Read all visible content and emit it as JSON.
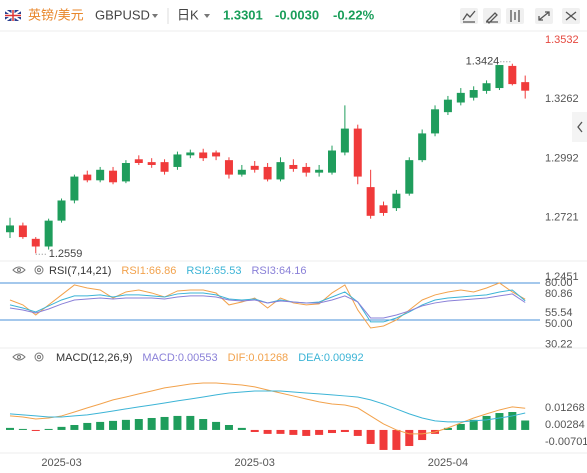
{
  "header": {
    "name": "英镑/美元",
    "symbol": "GBPUSD",
    "period": "日K",
    "price": "1.3301",
    "change": "-0.0030",
    "change_pct": "-0.22%",
    "quote_color": "#1a9e5a"
  },
  "chart_data": [
    {
      "type": "candlestick",
      "categories": [
        null,
        null,
        null,
        null,
        "2025-03",
        null,
        null,
        null,
        null,
        null,
        null,
        null,
        null,
        null,
        null,
        null,
        null,
        null,
        null,
        "2025-03",
        null,
        null,
        null,
        null,
        null,
        null,
        null,
        null,
        null,
        null,
        null,
        null,
        null,
        null,
        "2025-04",
        null,
        null,
        null,
        null,
        null,
        null
      ],
      "open": [
        1.2655,
        1.2686,
        1.2625,
        1.259,
        1.2708,
        1.28,
        1.2918,
        1.2892,
        1.2936,
        1.2887,
        1.2988,
        1.2975,
        1.2975,
        1.2953,
        1.3006,
        1.3019,
        1.3019,
        1.2984,
        1.2918,
        1.2958,
        1.2953,
        1.2896,
        1.2962,
        1.2953,
        1.2927,
        1.2927,
        1.3019,
        1.3128,
        1.2861,
        1.2778,
        1.2765,
        1.2831,
        1.2984,
        1.3106,
        1.3203,
        1.3247,
        1.3269,
        1.33,
        1.3313,
        1.3414,
        1.334
      ],
      "high": [
        1.2721,
        1.2699,
        1.2633,
        1.2717,
        1.2809,
        1.2918,
        1.2936,
        1.2953,
        1.2953,
        1.2984,
        1.3006,
        1.2993,
        1.2988,
        1.3023,
        1.3032,
        1.3036,
        1.3028,
        1.2997,
        1.2962,
        1.298,
        1.2971,
        1.2997,
        1.2988,
        1.2971,
        1.2962,
        1.305,
        1.3234,
        1.3146,
        1.294,
        1.2795,
        1.2848,
        1.2997,
        1.3124,
        1.3234,
        1.3277,
        1.3313,
        1.3321,
        1.3348,
        1.3418,
        1.3424,
        1.337
      ],
      "low": [
        1.2629,
        1.2625,
        1.2559,
        1.2576,
        1.2699,
        1.2787,
        1.2883,
        1.2883,
        1.2874,
        1.2879,
        1.2962,
        1.2949,
        1.2918,
        1.294,
        1.2993,
        1.298,
        1.2984,
        1.29,
        1.2909,
        1.2927,
        1.2887,
        1.2887,
        1.2931,
        1.2909,
        1.2909,
        1.2918,
        1.3006,
        1.2874,
        1.2717,
        1.273,
        1.2752,
        1.2822,
        1.2975,
        1.3093,
        1.319,
        1.3234,
        1.3256,
        1.3287,
        1.3304,
        1.3325,
        1.3265
      ],
      "close": [
        1.2686,
        1.2633,
        1.259,
        1.2708,
        1.28,
        1.2909,
        1.2892,
        1.294,
        1.2883,
        1.2971,
        1.2971,
        1.2962,
        1.2931,
        1.301,
        1.3019,
        1.2993,
        1.3001,
        1.2918,
        1.294,
        1.294,
        1.2896,
        1.2975,
        1.2944,
        1.2927,
        1.294,
        1.3028,
        1.3128,
        1.2909,
        1.273,
        1.2743,
        1.2831,
        1.2984,
        1.3106,
        1.3216,
        1.326,
        1.3291,
        1.3304,
        1.3335,
        1.3418,
        1.3331,
        1.3301
      ],
      "up_color": "#1f9d5c",
      "down_color": "#f03a3a",
      "ylim": [
        1.2428,
        1.3587
      ],
      "yticks": [
        1.3532,
        1.3262,
        1.2992,
        1.2721,
        1.2451
      ],
      "top_tick_color": "#e5483f",
      "max_label": 1.3424,
      "min_label": 1.2559
    },
    {
      "type": "line",
      "title": "RSI(7,14,21)",
      "series": [
        {
          "name": "RSI1:66.86",
          "color": "#f2a24c",
          "values": [
            66.2,
            62.2,
            54.0,
            62.2,
            70.3,
            78.4,
            75.9,
            74.3,
            67.8,
            72.7,
            74.3,
            71.9,
            68.6,
            73.5,
            74.3,
            74.3,
            71.9,
            62.2,
            64.6,
            67.8,
            59.7,
            67.8,
            63.8,
            62.2,
            63.0,
            71.9,
            78.4,
            58.1,
            43.5,
            45.1,
            50.0,
            58.1,
            66.2,
            70.3,
            72.7,
            74.3,
            72.7,
            75.9,
            80.0,
            72.7,
            66.86
          ]
        },
        {
          "name": "RSI2:65.53",
          "color": "#3cb4d6",
          "values": [
            62.2,
            59.7,
            56.5,
            61.4,
            66.2,
            69.5,
            69.5,
            70.3,
            68.6,
            70.3,
            70.3,
            69.5,
            68.6,
            71.1,
            71.9,
            71.9,
            70.3,
            67.0,
            66.2,
            67.0,
            63.8,
            66.2,
            64.6,
            63.8,
            64.6,
            68.6,
            72.7,
            64.6,
            48.4,
            48.4,
            51.6,
            56.5,
            62.2,
            66.2,
            67.8,
            68.6,
            69.5,
            70.3,
            72.7,
            74.3,
            65.53
          ]
        },
        {
          "name": "RSI3:64.16",
          "color": "#8a80d8",
          "values": [
            59.7,
            58.1,
            55.7,
            58.9,
            62.9,
            66.2,
            67.0,
            67.8,
            67.0,
            67.8,
            67.8,
            67.8,
            67.0,
            68.6,
            69.5,
            69.5,
            68.6,
            66.2,
            65.4,
            66.2,
            63.8,
            65.4,
            64.6,
            63.8,
            63.8,
            66.2,
            69.5,
            64.6,
            51.6,
            51.6,
            54.0,
            57.3,
            61.4,
            63.8,
            65.4,
            66.2,
            67.0,
            67.8,
            69.5,
            71.1,
            64.16
          ]
        }
      ],
      "ylim": [
        29.7,
        82.4
      ],
      "yticks": [
        {
          "value": 80,
          "label": "80.00"
        },
        80.86,
        55.54,
        {
          "value": 50,
          "label": "50.00"
        },
        30.22
      ],
      "reference_lines": [
        80,
        50
      ],
      "reference_color": "#4a90d9"
    },
    {
      "type": "macd",
      "title": "MACD(12,26,9)",
      "series": [
        {
          "name": "MACD:0.00553",
          "color": "#8a80d8",
          "up_color": "#1f9d5c",
          "down_color": "#f03a3a",
          "values": [
            0.0012,
            0.0006,
            -0.0006,
            0.0006,
            0.0018,
            0.0029,
            0.0041,
            0.0047,
            0.0053,
            0.0059,
            0.0064,
            0.007,
            0.0076,
            0.0082,
            0.0082,
            0.0064,
            0.0047,
            0.0029,
            0.0012,
            -0.0012,
            -0.0023,
            -0.0023,
            -0.0029,
            -0.0035,
            -0.0029,
            -0.0018,
            -0.0012,
            -0.0035,
            -0.0082,
            -0.0117,
            -0.0117,
            -0.0094,
            -0.0059,
            -0.0023,
            0.0012,
            0.0035,
            0.0059,
            0.0082,
            0.0099,
            0.0105,
            0.00553
          ]
        },
        {
          "name": "DIF:0.01268",
          "color": "#f2a24c",
          "values": [
            0.0082,
            0.0076,
            0.0064,
            0.007,
            0.0082,
            0.0105,
            0.0129,
            0.0152,
            0.0176,
            0.0193,
            0.0211,
            0.0228,
            0.0246,
            0.0257,
            0.0269,
            0.0275,
            0.0275,
            0.0269,
            0.0263,
            0.0252,
            0.0234,
            0.0216,
            0.0199,
            0.0181,
            0.0164,
            0.0152,
            0.0146,
            0.0129,
            0.0082,
            0.0035,
            0,
            -0.0023,
            -0.0023,
            -0.0012,
            0.0012,
            0.0041,
            0.007,
            0.0094,
            0.0117,
            0.0135,
            0.01268
          ]
        },
        {
          "name": "DEA:0.00992",
          "color": "#3cb4d6",
          "values": [
            0.0094,
            0.0088,
            0.0082,
            0.0076,
            0.0076,
            0.0082,
            0.0088,
            0.0099,
            0.0111,
            0.0123,
            0.0135,
            0.0146,
            0.0158,
            0.017,
            0.0181,
            0.0193,
            0.0205,
            0.0216,
            0.0222,
            0.0228,
            0.0228,
            0.0228,
            0.0222,
            0.0216,
            0.0211,
            0.0205,
            0.0199,
            0.0193,
            0.0176,
            0.0152,
            0.0123,
            0.0094,
            0.007,
            0.0053,
            0.0047,
            0.0047,
            0.0053,
            0.0059,
            0.007,
            0.0082,
            0.00992
          ]
        }
      ],
      "ylim": [
        -0.0129,
        0.038
      ],
      "yticks": [
        0.01268,
        0.00284,
        -0.00701
      ]
    }
  ]
}
